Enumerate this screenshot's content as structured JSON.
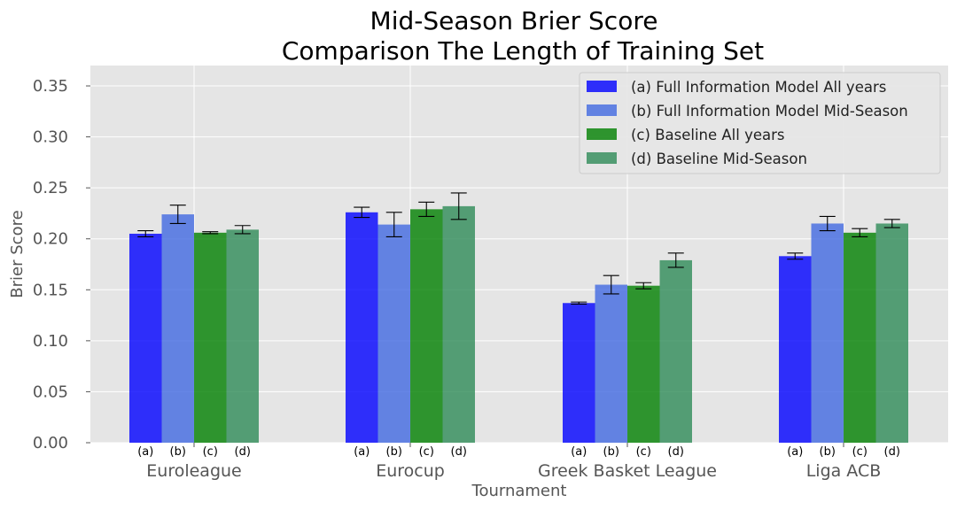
{
  "chart_data": {
    "type": "bar",
    "title_lines": [
      "Mid-Season Brier Score",
      "Comparison The Length of Training Set"
    ],
    "xlabel": "Tournament",
    "ylabel": "Brier Score",
    "ylim": [
      0,
      0.37
    ],
    "yticks": [
      "0.00",
      "0.05",
      "0.10",
      "0.15",
      "0.20",
      "0.25",
      "0.30",
      "0.35"
    ],
    "grid": true,
    "legend_position": "top-right",
    "categories": [
      "Euroleague",
      "Eurocup",
      "Greek Basket League",
      "Liga ACB"
    ],
    "sub_labels": [
      "(a)",
      "(b)",
      "(c)",
      "(d)"
    ],
    "series": [
      {
        "name": "(a) Full Information Model All years",
        "color": "#0000ff",
        "values": [
          0.205,
          0.226,
          0.137,
          0.183
        ],
        "errors": [
          0.003,
          0.005,
          0.001,
          0.003
        ]
      },
      {
        "name": "(b) Full Information Model Mid-Season",
        "color": "#4169e1",
        "values": [
          0.224,
          0.214,
          0.155,
          0.215
        ],
        "errors": [
          0.009,
          0.012,
          0.009,
          0.007
        ]
      },
      {
        "name": "(c) Baseline All years",
        "color": "#008000",
        "values": [
          0.206,
          0.229,
          0.154,
          0.206
        ],
        "errors": [
          0.001,
          0.007,
          0.003,
          0.004
        ]
      },
      {
        "name": "(d) Baseline Mid-Season",
        "color": "#2e8b57",
        "values": [
          0.209,
          0.232,
          0.179,
          0.215
        ],
        "errors": [
          0.004,
          0.013,
          0.007,
          0.004
        ]
      }
    ]
  }
}
